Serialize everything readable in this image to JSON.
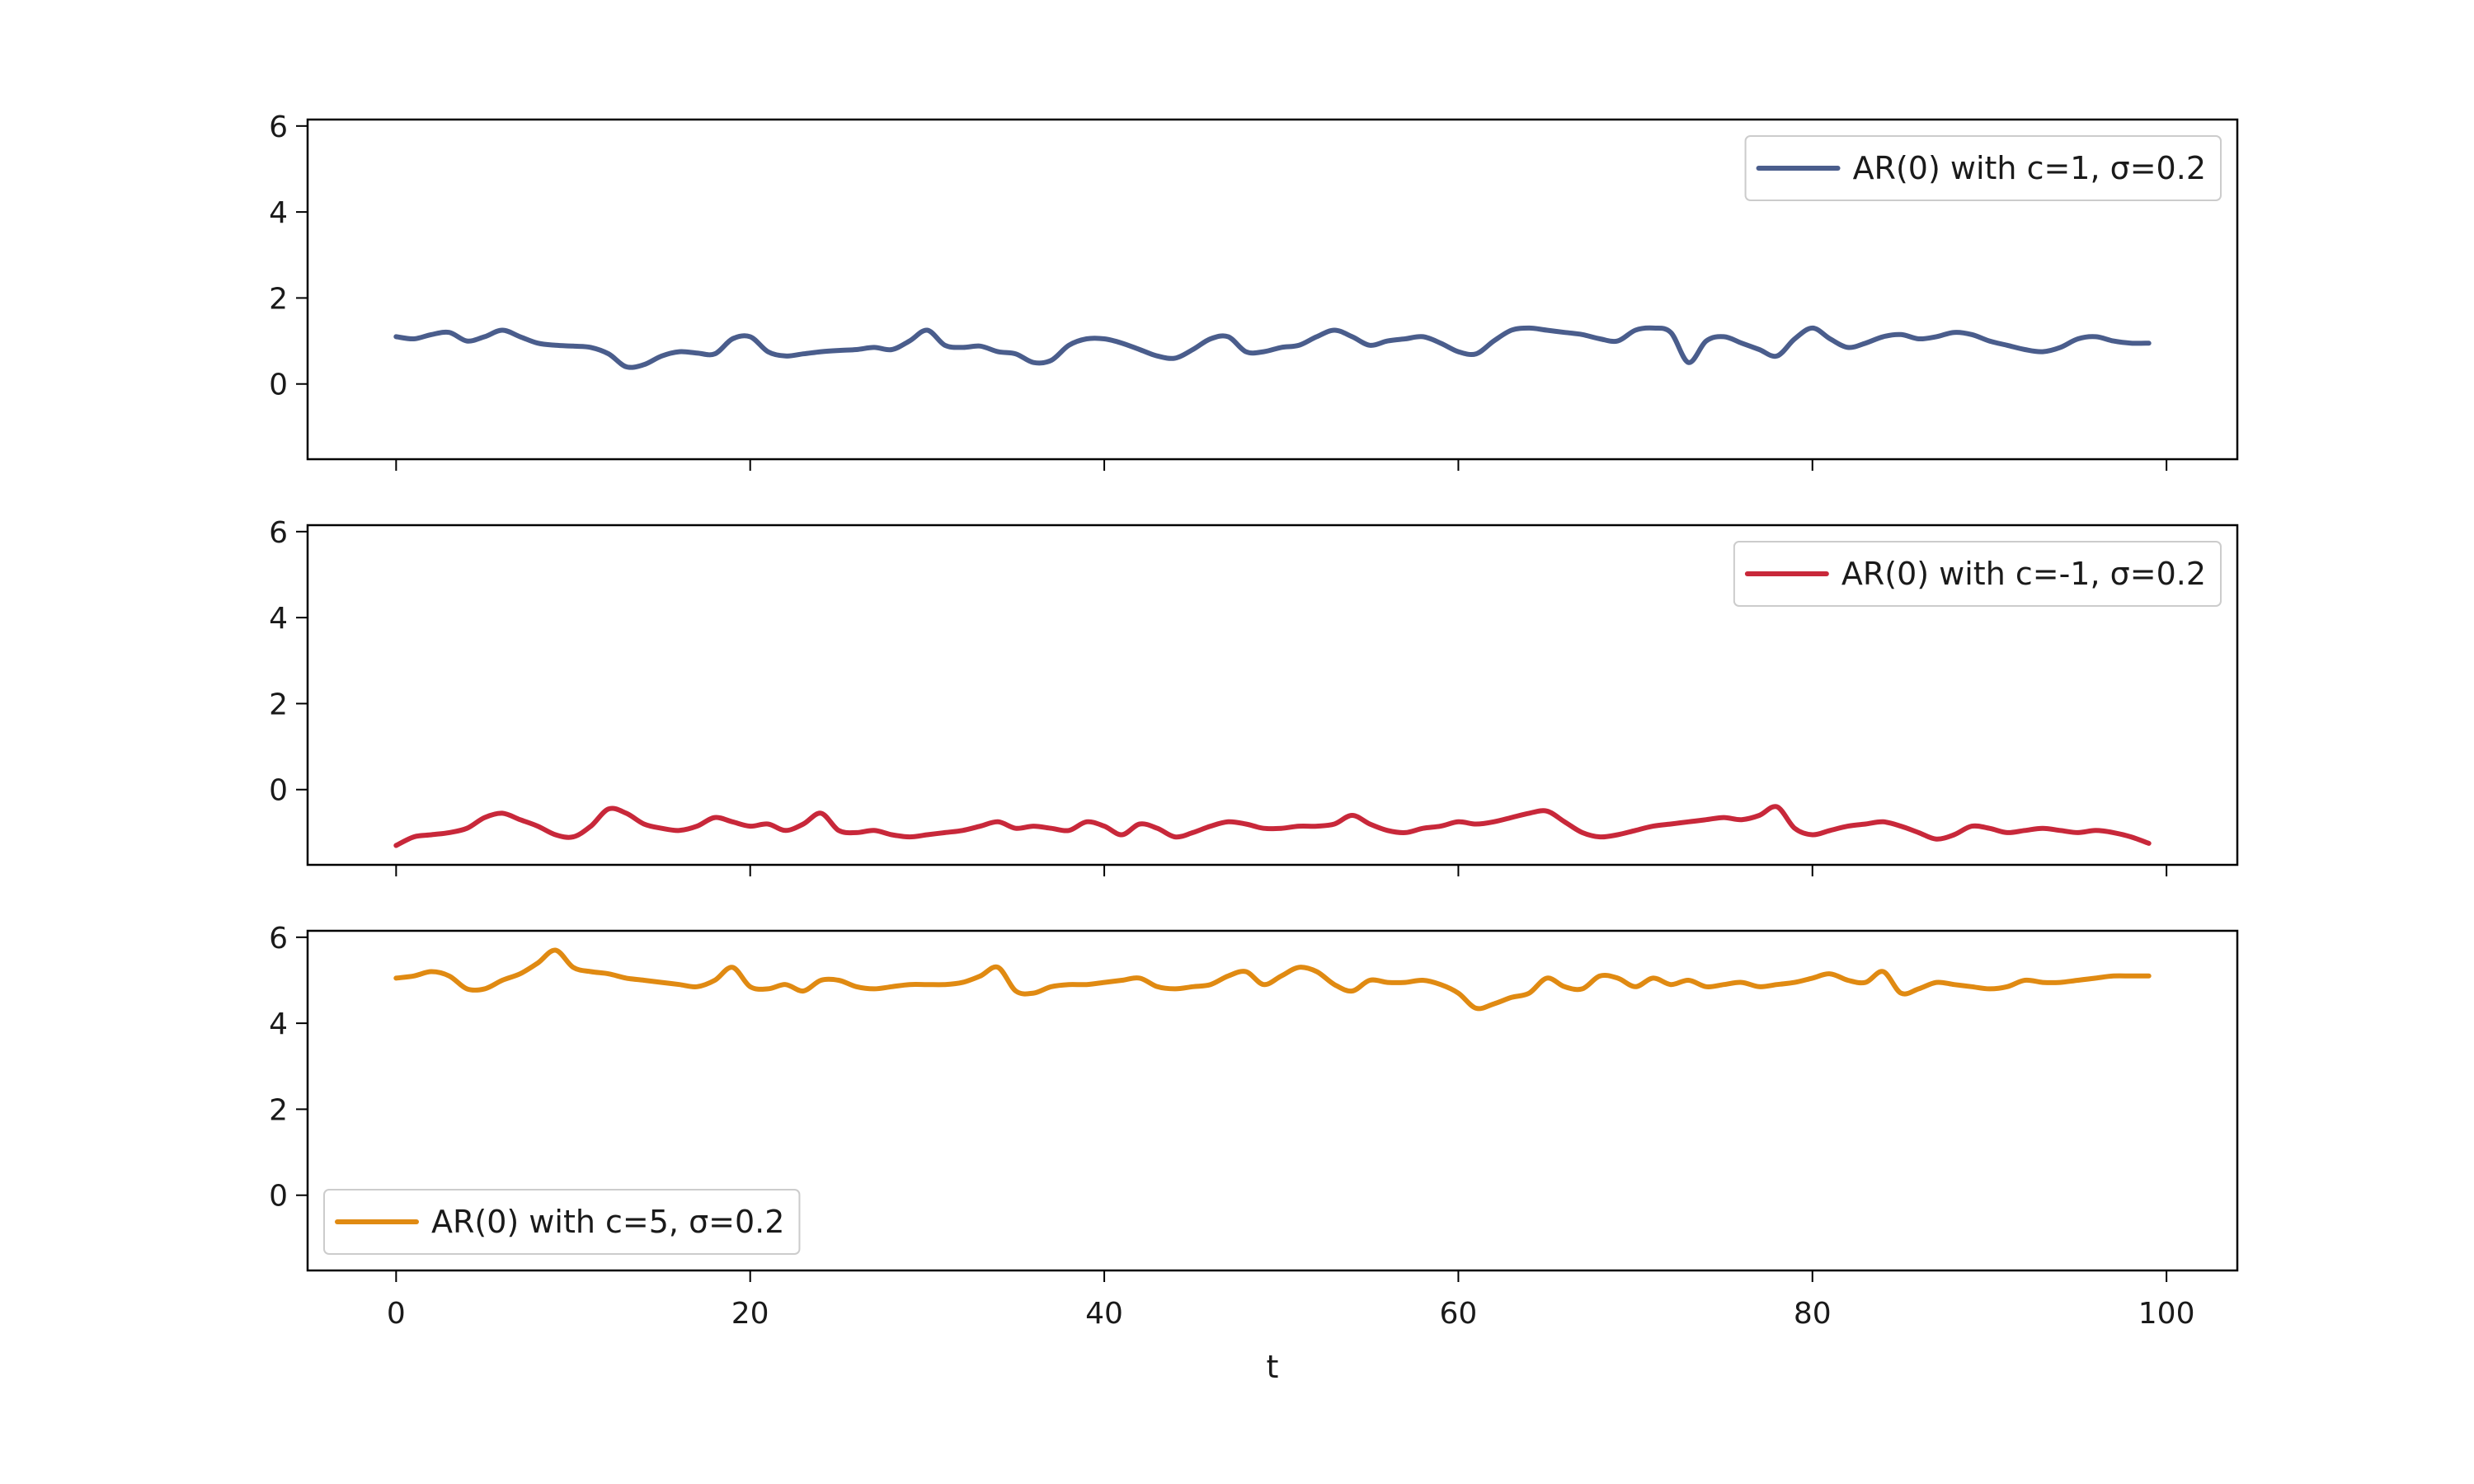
{
  "chart_data": {
    "type": "line",
    "layout": "3 vertically stacked subplots, shared x-axis",
    "xlabel": "t",
    "xlim": [
      -5,
      104
    ],
    "x_ticks": [
      0,
      20,
      40,
      60,
      80,
      100
    ],
    "ylim": [
      -1.75,
      6.15
    ],
    "y_ticks": [
      0,
      2,
      4,
      6
    ],
    "grid": false,
    "subplots": [
      {
        "legend_position": "upper-right",
        "series": [
          {
            "name": "AR(0) with c=1, σ=0.2",
            "color": "#4a5d8c",
            "x": [
              0,
              1,
              2,
              3,
              4,
              5,
              6,
              7,
              8,
              9,
              10,
              11,
              12,
              13,
              14,
              15,
              16,
              17,
              18,
              19,
              20,
              21,
              22,
              23,
              24,
              25,
              26,
              27,
              28,
              29,
              30,
              31,
              32,
              33,
              34,
              35,
              36,
              37,
              38,
              39,
              40,
              41,
              42,
              43,
              44,
              45,
              46,
              47,
              48,
              49,
              50,
              51,
              52,
              53,
              54,
              55,
              56,
              57,
              58,
              59,
              60,
              61,
              62,
              63,
              64,
              65,
              66,
              67,
              68,
              69,
              70,
              71,
              72,
              73,
              74,
              75,
              76,
              77,
              78,
              79,
              80,
              81,
              82,
              83,
              84,
              85,
              86,
              87,
              88,
              89,
              90,
              91,
              92,
              93,
              94,
              95,
              96,
              97,
              98,
              99
            ],
            "y": [
              1.1,
              1.05,
              1.15,
              1.2,
              1.0,
              1.1,
              1.25,
              1.1,
              0.95,
              0.9,
              0.88,
              0.85,
              0.7,
              0.4,
              0.45,
              0.65,
              0.75,
              0.72,
              0.7,
              1.05,
              1.1,
              0.75,
              0.65,
              0.7,
              0.75,
              0.78,
              0.8,
              0.85,
              0.8,
              1.0,
              1.25,
              0.9,
              0.85,
              0.88,
              0.75,
              0.7,
              0.5,
              0.55,
              0.9,
              1.05,
              1.05,
              0.95,
              0.8,
              0.65,
              0.6,
              0.8,
              1.05,
              1.1,
              0.75,
              0.75,
              0.85,
              0.9,
              1.1,
              1.25,
              1.1,
              0.9,
              1.0,
              1.05,
              1.1,
              0.95,
              0.75,
              0.7,
              1.0,
              1.25,
              1.3,
              1.25,
              1.2,
              1.15,
              1.05,
              1.0,
              1.25,
              1.3,
              1.2,
              0.5,
              1.0,
              1.1,
              0.95,
              0.8,
              0.65,
              1.05,
              1.3,
              1.05,
              0.85,
              0.95,
              1.1,
              1.15,
              1.05,
              1.1,
              1.2,
              1.15,
              1.0,
              0.9,
              0.8,
              0.75,
              0.85,
              1.05,
              1.1,
              1.0,
              0.95,
              0.95
            ]
          }
        ]
      },
      {
        "legend_position": "upper-right",
        "series": [
          {
            "name": "AR(0) with c=-1, σ=0.2",
            "color": "#c8283a",
            "x": [
              0,
              1,
              2,
              3,
              4,
              5,
              6,
              7,
              8,
              9,
              10,
              11,
              12,
              13,
              14,
              15,
              16,
              17,
              18,
              19,
              20,
              21,
              22,
              23,
              24,
              25,
              26,
              27,
              28,
              29,
              30,
              31,
              32,
              33,
              34,
              35,
              36,
              37,
              38,
              39,
              40,
              41,
              42,
              43,
              44,
              45,
              46,
              47,
              48,
              49,
              50,
              51,
              52,
              53,
              54,
              55,
              56,
              57,
              58,
              59,
              60,
              61,
              62,
              63,
              64,
              65,
              66,
              67,
              68,
              69,
              70,
              71,
              72,
              73,
              74,
              75,
              76,
              77,
              78,
              79,
              80,
              81,
              82,
              83,
              84,
              85,
              86,
              87,
              88,
              89,
              90,
              91,
              92,
              93,
              94,
              95,
              96,
              97,
              98,
              99
            ],
            "y": [
              -1.3,
              -1.1,
              -1.05,
              -1.0,
              -0.9,
              -0.65,
              -0.55,
              -0.7,
              -0.85,
              -1.05,
              -1.1,
              -0.85,
              -0.45,
              -0.55,
              -0.8,
              -0.9,
              -0.95,
              -0.85,
              -0.65,
              -0.75,
              -0.85,
              -0.8,
              -0.95,
              -0.8,
              -0.55,
              -0.95,
              -1.0,
              -0.95,
              -1.05,
              -1.1,
              -1.05,
              -1.0,
              -0.95,
              -0.85,
              -0.75,
              -0.9,
              -0.85,
              -0.9,
              -0.95,
              -0.75,
              -0.85,
              -1.05,
              -0.8,
              -0.9,
              -1.1,
              -1.0,
              -0.85,
              -0.75,
              -0.8,
              -0.9,
              -0.9,
              -0.85,
              -0.85,
              -0.8,
              -0.6,
              -0.8,
              -0.95,
              -1.0,
              -0.9,
              -0.85,
              -0.75,
              -0.8,
              -0.75,
              -0.65,
              -0.55,
              -0.5,
              -0.75,
              -1.0,
              -1.1,
              -1.05,
              -0.95,
              -0.85,
              -0.8,
              -0.75,
              -0.7,
              -0.65,
              -0.7,
              -0.6,
              -0.4,
              -0.9,
              -1.05,
              -0.95,
              -0.85,
              -0.8,
              -0.75,
              -0.85,
              -1.0,
              -1.15,
              -1.05,
              -0.85,
              -0.9,
              -1.0,
              -0.95,
              -0.9,
              -0.95,
              -1.0,
              -0.95,
              -1.0,
              -1.1,
              -1.25
            ]
          }
        ]
      },
      {
        "legend_position": "lower-left",
        "series": [
          {
            "name": "AR(0) with c=5, σ=0.2",
            "color": "#e08a12",
            "x": [
              0,
              1,
              2,
              3,
              4,
              5,
              6,
              7,
              8,
              9,
              10,
              11,
              12,
              13,
              14,
              15,
              16,
              17,
              18,
              19,
              20,
              21,
              22,
              23,
              24,
              25,
              26,
              27,
              28,
              29,
              30,
              31,
              32,
              33,
              34,
              35,
              36,
              37,
              38,
              39,
              40,
              41,
              42,
              43,
              44,
              45,
              46,
              47,
              48,
              49,
              50,
              51,
              52,
              53,
              54,
              55,
              56,
              57,
              58,
              59,
              60,
              61,
              62,
              63,
              64,
              65,
              66,
              67,
              68,
              69,
              70,
              71,
              72,
              73,
              74,
              75,
              76,
              77,
              78,
              79,
              80,
              81,
              82,
              83,
              84,
              85,
              86,
              87,
              88,
              89,
              90,
              91,
              92,
              93,
              94,
              95,
              96,
              97,
              98,
              99
            ],
            "y": [
              5.05,
              5.1,
              5.2,
              5.1,
              4.8,
              4.8,
              5.0,
              5.15,
              5.4,
              5.7,
              5.3,
              5.2,
              5.15,
              5.05,
              5.0,
              4.95,
              4.9,
              4.85,
              5.0,
              5.3,
              4.85,
              4.8,
              4.9,
              4.75,
              5.0,
              5.0,
              4.85,
              4.8,
              4.85,
              4.9,
              4.9,
              4.9,
              4.95,
              5.1,
              5.3,
              4.75,
              4.7,
              4.85,
              4.9,
              4.9,
              4.95,
              5.0,
              5.05,
              4.85,
              4.8,
              4.85,
              4.9,
              5.1,
              5.2,
              4.9,
              5.1,
              5.3,
              5.2,
              4.9,
              4.75,
              5.0,
              4.95,
              4.95,
              5.0,
              4.9,
              4.7,
              4.35,
              4.45,
              4.6,
              4.7,
              5.05,
              4.85,
              4.8,
              5.1,
              5.05,
              4.85,
              5.05,
              4.9,
              5.0,
              4.85,
              4.9,
              4.95,
              4.85,
              4.9,
              4.95,
              5.05,
              5.15,
              5.0,
              4.95,
              5.2,
              4.7,
              4.8,
              4.95,
              4.9,
              4.85,
              4.8,
              4.85,
              5.0,
              4.95,
              4.95,
              5.0,
              5.05,
              5.1,
              5.1,
              5.1
            ]
          }
        ]
      }
    ]
  }
}
